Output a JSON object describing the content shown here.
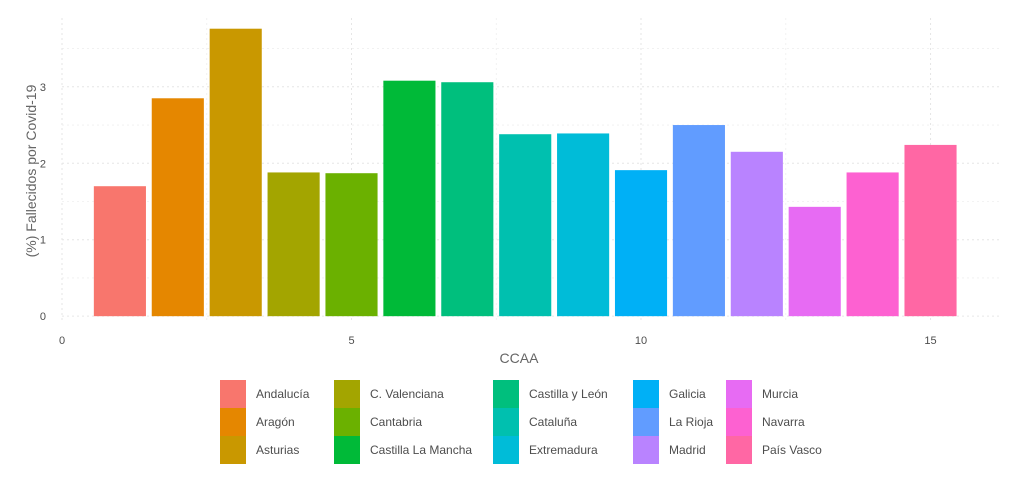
{
  "chart_data": {
    "type": "bar",
    "title": "",
    "xlabel": "CCAA",
    "ylabel": "(%) Fallecidos por Covid-19",
    "xlim": [
      0,
      16.2
    ],
    "ylim": [
      -0.05,
      3.9
    ],
    "xticks": [
      0,
      5,
      10,
      15
    ],
    "yticks": [
      0,
      1,
      2,
      3
    ],
    "grid": true,
    "legend_position": "bottom",
    "bar_width": 0.9,
    "bars": [
      {
        "name": "Andalucía",
        "x": 1,
        "value": 1.7,
        "color": "#F8766D"
      },
      {
        "name": "Aragón",
        "x": 2,
        "value": 2.85,
        "color": "#E58700"
      },
      {
        "name": "Asturias",
        "x": 3,
        "value": 3.76,
        "color": "#C99800"
      },
      {
        "name": "C. Valenciana",
        "x": 4,
        "value": 1.88,
        "color": "#A3A500"
      },
      {
        "name": "Cantabria",
        "x": 5,
        "value": 1.87,
        "color": "#6BB100"
      },
      {
        "name": "Castilla La Mancha",
        "x": 6,
        "value": 3.08,
        "color": "#00BA38"
      },
      {
        "name": "Castilla y León",
        "x": 7,
        "value": 3.06,
        "color": "#00BF7D"
      },
      {
        "name": "Cataluña",
        "x": 8,
        "value": 2.38,
        "color": "#00C0AF"
      },
      {
        "name": "Extremadura",
        "x": 9,
        "value": 2.39,
        "color": "#00BCD8"
      },
      {
        "name": "Galicia",
        "x": 10,
        "value": 1.91,
        "color": "#00B0F6"
      },
      {
        "name": "La Rioja",
        "x": 11,
        "value": 2.5,
        "color": "#619CFF"
      },
      {
        "name": "Madrid",
        "x": 12,
        "value": 2.15,
        "color": "#B983FF"
      },
      {
        "name": "Murcia",
        "x": 13,
        "value": 1.43,
        "color": "#E76BF3"
      },
      {
        "name": "Navarra",
        "x": 14,
        "value": 1.88,
        "color": "#FD61D1"
      },
      {
        "name": "País Vasco",
        "x": 15,
        "value": 2.24,
        "color": "#FF67A4"
      }
    ]
  }
}
